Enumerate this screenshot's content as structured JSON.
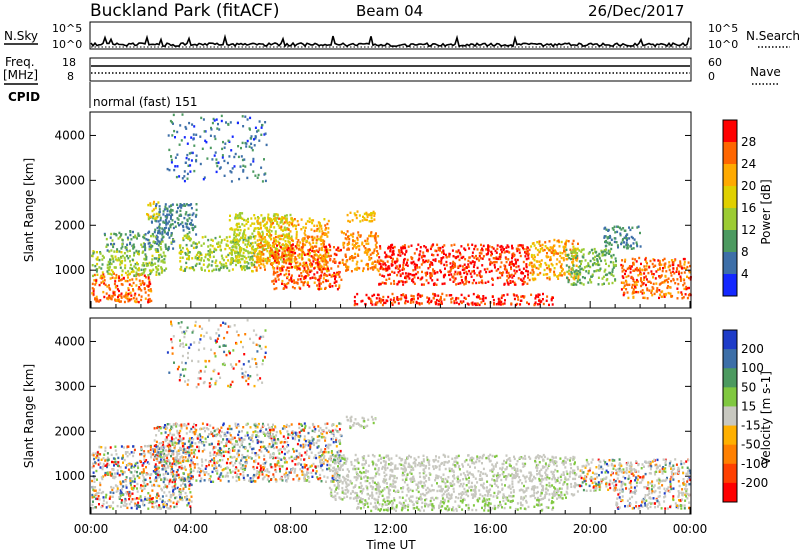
{
  "header": {
    "station": "Buckland Park (fitACF)",
    "beam": "Beam 04",
    "date": "26/Dec/2017"
  },
  "strip_labels": {
    "nsky": "N.Sky",
    "nsearch": "N.Search",
    "freq_line1": "Freq.",
    "freq_line2": "[MHz]",
    "nave": "Nave",
    "cpid": "CPID",
    "cpid_value": "normal (fast) 151"
  },
  "strip_ticks": {
    "noise_left": [
      "10^5",
      "10^0"
    ],
    "noise_right": [
      "10^5",
      "10^0"
    ],
    "freq_left": [
      "18",
      "8"
    ],
    "nave_right": [
      "60",
      "0"
    ]
  },
  "chart_data": [
    {
      "type": "heatmap",
      "parameter": "Power",
      "xlabel": "",
      "ylabel": "Slant Range [km]",
      "colorbar_label": "Power [dB]",
      "colorbar_ticks": [
        "28",
        "24",
        "20",
        "16",
        "12",
        "8",
        "4"
      ],
      "colorbar_colors": [
        "#ff0000",
        "#ff6600",
        "#ffaa00",
        "#e0d000",
        "#9ccc33",
        "#4c9a60",
        "#3d6fa8",
        "#1428ff"
      ],
      "y_ticks": [
        "1000",
        "2000",
        "3000",
        "4000"
      ],
      "ylim_km": [
        180,
        4500
      ],
      "xlim_hours": [
        0,
        24
      ],
      "regions": [
        {
          "t0": 0.0,
          "t1": 2.4,
          "r0": 300,
          "r1": 950,
          "level": 26
        },
        {
          "t0": 0.0,
          "t1": 3.0,
          "r0": 900,
          "r1": 1450,
          "level": 14
        },
        {
          "t0": 0.5,
          "t1": 3.3,
          "r0": 1450,
          "r1": 1900,
          "level": 10
        },
        {
          "t0": 2.4,
          "t1": 4.2,
          "r0": 1800,
          "r1": 2500,
          "level": 8
        },
        {
          "t0": 3.5,
          "t1": 6.5,
          "r0": 1000,
          "r1": 1800,
          "level": 14
        },
        {
          "t0": 5.5,
          "t1": 8.0,
          "r0": 1200,
          "r1": 2300,
          "level": 16
        },
        {
          "t0": 6.5,
          "t1": 9.5,
          "r0": 1000,
          "r1": 2200,
          "level": 22
        },
        {
          "t0": 7.2,
          "t1": 10.0,
          "r0": 600,
          "r1": 1600,
          "level": 27
        },
        {
          "t0": 10.0,
          "t1": 11.5,
          "r0": 1000,
          "r1": 1900,
          "level": 24
        },
        {
          "t0": 11.5,
          "t1": 17.5,
          "r0": 700,
          "r1": 1600,
          "level": 29
        },
        {
          "t0": 10.5,
          "t1": 18.5,
          "r0": 250,
          "r1": 500,
          "level": 29
        },
        {
          "t0": 17.5,
          "t1": 19.5,
          "r0": 800,
          "r1": 1700,
          "level": 22
        },
        {
          "t0": 19.0,
          "t1": 21.0,
          "r0": 700,
          "r1": 1500,
          "level": 12
        },
        {
          "t0": 20.5,
          "t1": 22.0,
          "r0": 1500,
          "r1": 2000,
          "level": 8
        },
        {
          "t0": 21.2,
          "t1": 24.0,
          "r0": 400,
          "r1": 1300,
          "level": 26
        },
        {
          "t0": 3.0,
          "t1": 7.0,
          "r0": 3000,
          "r1": 4500,
          "level": 6
        },
        {
          "t0": 10.2,
          "t1": 11.4,
          "r0": 2100,
          "r1": 2350,
          "level": 20
        },
        {
          "t0": 2.2,
          "t1": 2.7,
          "r0": 2150,
          "r1": 2550,
          "level": 18
        }
      ]
    },
    {
      "type": "heatmap",
      "parameter": "Velocity",
      "xlabel": "Time UT",
      "ylabel": "Slant Range [km]",
      "colorbar_label": "Velocity [m s-1]",
      "colorbar_ticks": [
        "200",
        "100",
        "50",
        "15",
        "-15",
        "-50",
        "-100",
        "-200"
      ],
      "colorbar_colors": [
        "#1e3cc8",
        "#3d6fa8",
        "#4c9a60",
        "#80c840",
        "#c8c8c0",
        "#ffb000",
        "#ff8000",
        "#ff4000",
        "#ff0000"
      ],
      "x_ticks": [
        "00:00",
        "04:00",
        "08:00",
        "12:00",
        "16:00",
        "20:00",
        "00:00"
      ],
      "y_ticks": [
        "1000",
        "2000",
        "3000",
        "4000"
      ],
      "ylim_km": [
        180,
        4500
      ],
      "xlim_hours": [
        0,
        24
      ],
      "regions": [
        {
          "t0": 0.0,
          "t1": 4.0,
          "r0": 300,
          "r1": 1700,
          "level": "mixed"
        },
        {
          "t0": 2.5,
          "t1": 10.0,
          "r0": 900,
          "r1": 2200,
          "level": "mixed"
        },
        {
          "t0": 9.5,
          "t1": 19.5,
          "r0": 500,
          "r1": 1500,
          "level": "low"
        },
        {
          "t0": 10.5,
          "t1": 18.5,
          "r0": 250,
          "r1": 500,
          "level": "low_green"
        },
        {
          "t0": 19.5,
          "t1": 21.0,
          "r0": 700,
          "r1": 1400,
          "level": "mixed"
        },
        {
          "t0": 21.0,
          "t1": 24.0,
          "r0": 300,
          "r1": 1400,
          "level": "low_mixed"
        },
        {
          "t0": 3.0,
          "t1": 7.0,
          "r0": 3000,
          "r1": 4500,
          "level": "mixed"
        },
        {
          "t0": 10.2,
          "t1": 11.4,
          "r0": 2100,
          "r1": 2350,
          "level": "low"
        }
      ]
    }
  ]
}
